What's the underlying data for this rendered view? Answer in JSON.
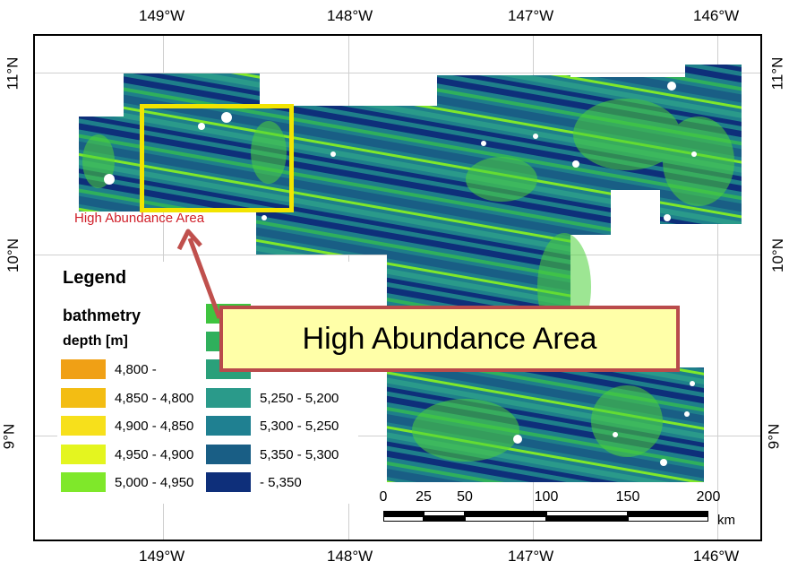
{
  "map": {
    "top_axis_labels": [
      "149°W",
      "148°W",
      "147°W",
      "146°W"
    ],
    "bottom_axis_labels": [
      "149°W",
      "148°W",
      "147°W",
      "146°W"
    ],
    "left_axis_labels": [
      "11°N",
      "10°N",
      "9°N"
    ],
    "right_axis_labels": [
      "11°N",
      "10°N",
      "9°N"
    ],
    "small_callout": "High Abundance Area",
    "main_callout": "High Abundance Area",
    "colors": {
      "highlight_box": "#f2e400",
      "callout_fill": "#ffffa8",
      "callout_border": "#b94b4b",
      "arrow": "#c0504d",
      "small_callout_text": "#d0202a"
    }
  },
  "legend": {
    "title": "Legend",
    "layer": "bathmetry",
    "unit": "depth [m]",
    "left_items": [
      {
        "label": "4,800 -",
        "color": "#f0a015"
      },
      {
        "label": "4,850 - 4,800",
        "color": "#f3bd13"
      },
      {
        "label": "4,900 - 4,850",
        "color": "#f7e01b"
      },
      {
        "label": "4,950 - 4,900",
        "color": "#e4f51f"
      },
      {
        "label": "5,000 - 4,950",
        "color": "#7fe82a"
      }
    ],
    "right_items": [
      {
        "label": "",
        "color": "#3fc43f"
      },
      {
        "label": "",
        "color": "#2fb05c"
      },
      {
        "label": "",
        "color": "#2aa07a"
      },
      {
        "label": "5,250 - 5,200",
        "color": "#2a9a8a"
      },
      {
        "label": "5,300 - 5,250",
        "color": "#1f8091"
      },
      {
        "label": "5,350 - 5,300",
        "color": "#195e85"
      },
      {
        "label": "- 5,350",
        "color": "#0e2f7a"
      }
    ]
  },
  "scalebar": {
    "ticks": [
      "0",
      "25",
      "50",
      "100",
      "150",
      "200"
    ],
    "unit": "km"
  }
}
